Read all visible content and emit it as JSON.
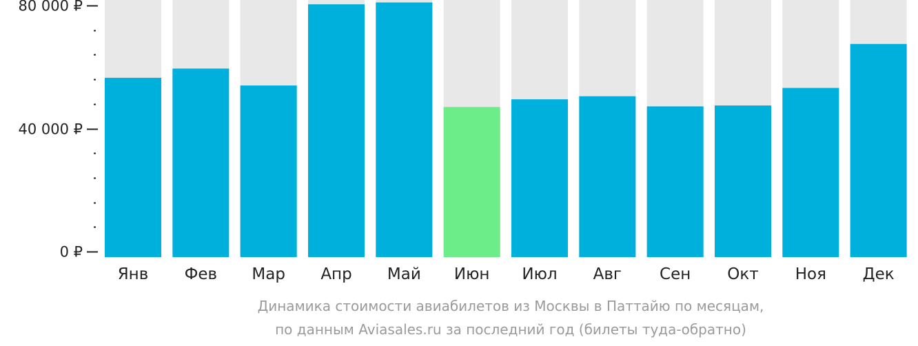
{
  "colors": {
    "bar": "#00b0dc",
    "highlight": "#6ced8a",
    "track": "#e8e8e8",
    "axis": "#222222",
    "caption": "#9a9a9a"
  },
  "caption": {
    "line1": "Динамика стоимости авиабилетов из Москвы в Паттайю по месяцам,",
    "line2": "по данным Aviasales.ru за последний год (билеты туда-обратно)"
  },
  "chart_data": {
    "type": "bar",
    "title": "",
    "xlabel": "",
    "ylabel": "",
    "ylim": [
      0,
      80000
    ],
    "y_ticks": [
      {
        "value": 0,
        "label": "0 ₽"
      },
      {
        "value": 40000,
        "label": "40 000 ₽"
      },
      {
        "value": 80000,
        "label": "80 000 ₽"
      }
    ],
    "y_minor_step": 8000,
    "categories": [
      "Янв",
      "Фев",
      "Мар",
      "Апр",
      "Май",
      "Июн",
      "Июл",
      "Авг",
      "Сен",
      "Окт",
      "Ноя",
      "Дек"
    ],
    "values": [
      56500,
      59500,
      54000,
      80400,
      81000,
      47000,
      49500,
      50500,
      47200,
      47500,
      53200,
      67500
    ],
    "highlight_index": 5,
    "background_bars": true,
    "grid": false,
    "legend": "none"
  }
}
